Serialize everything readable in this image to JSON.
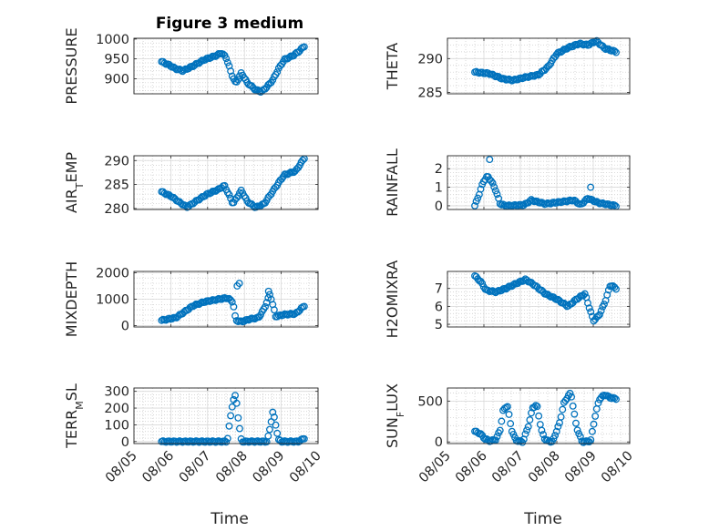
{
  "figure": {
    "title": "Figure 3 medium",
    "xlabel": "Time",
    "marker_color": "#0072BD",
    "x_ticks": [
      "08/05",
      "08/06",
      "08/07",
      "08/08",
      "08/09",
      "08/10"
    ]
  },
  "chart_data": [
    {
      "type": "scatter",
      "name": "pressure",
      "ylabel": "PRESSURE",
      "ylim": [
        862,
        1002
      ],
      "yticks": [
        900,
        950,
        1000
      ],
      "grid": true,
      "minor_grid": true,
      "x_start": "2008-08-05T18:00",
      "x_end": "2008-08-09T15:00",
      "points": 96,
      "profile": [
        [
          0,
          943
        ],
        [
          0.05,
          935
        ],
        [
          0.1,
          925
        ],
        [
          0.15,
          920
        ],
        [
          0.22,
          932
        ],
        [
          0.3,
          948
        ],
        [
          0.38,
          958
        ],
        [
          0.42,
          965
        ],
        [
          0.45,
          955
        ],
        [
          0.47,
          935
        ],
        [
          0.49,
          912
        ],
        [
          0.52,
          888
        ],
        [
          0.56,
          915
        ],
        [
          0.6,
          890
        ],
        [
          0.66,
          872
        ],
        [
          0.7,
          867
        ],
        [
          0.74,
          880
        ],
        [
          0.78,
          897
        ],
        [
          0.82,
          925
        ],
        [
          0.86,
          948
        ],
        [
          0.92,
          958
        ],
        [
          0.96,
          968
        ],
        [
          1.0,
          982
        ]
      ]
    },
    {
      "type": "scatter",
      "name": "theta",
      "ylabel": "THETA",
      "ylim": [
        284.8,
        293
      ],
      "yticks": [
        285,
        290
      ],
      "grid": true,
      "minor_grid": true,
      "x_start": "2008-08-05T18:00",
      "x_end": "2008-08-09T15:00",
      "points": 96,
      "profile": [
        [
          0,
          288
        ],
        [
          0.1,
          287.8
        ],
        [
          0.2,
          287
        ],
        [
          0.27,
          286.8
        ],
        [
          0.35,
          287.2
        ],
        [
          0.45,
          287.6
        ],
        [
          0.52,
          288.8
        ],
        [
          0.58,
          290.7
        ],
        [
          0.66,
          291.6
        ],
        [
          0.74,
          292.2
        ],
        [
          0.8,
          292
        ],
        [
          0.86,
          292.6
        ],
        [
          0.92,
          291.5
        ],
        [
          1.0,
          291
        ]
      ]
    },
    {
      "type": "scatter",
      "name": "air_temp",
      "ylabel": "AIR_TEMP",
      "ylim": [
        279.8,
        291
      ],
      "yticks": [
        280,
        285,
        290
      ],
      "grid": true,
      "minor_grid": true,
      "x_start": "2008-08-05T18:00",
      "x_end": "2008-08-09T15:00",
      "points": 96,
      "profile": [
        [
          0,
          283.5
        ],
        [
          0.07,
          282.5
        ],
        [
          0.13,
          281.2
        ],
        [
          0.18,
          280.3
        ],
        [
          0.24,
          281.5
        ],
        [
          0.32,
          283
        ],
        [
          0.4,
          284
        ],
        [
          0.44,
          284.8
        ],
        [
          0.47,
          283
        ],
        [
          0.5,
          281
        ],
        [
          0.56,
          283.8
        ],
        [
          0.6,
          281.5
        ],
        [
          0.66,
          280.2
        ],
        [
          0.72,
          281
        ],
        [
          0.8,
          284.5
        ],
        [
          0.86,
          287
        ],
        [
          0.94,
          287.8
        ],
        [
          1.0,
          290.5
        ]
      ]
    },
    {
      "type": "scatter",
      "name": "rainfall",
      "ylabel": "RAINFALL",
      "ylim": [
        -0.2,
        2.7
      ],
      "yticks": [
        0,
        1,
        2
      ],
      "grid": true,
      "minor_grid": true,
      "x_start": "2008-08-05T18:00",
      "x_end": "2008-08-09T15:00",
      "points": 96,
      "profile": [
        [
          0,
          0
        ],
        [
          0.03,
          0.6
        ],
        [
          0.06,
          1.3
        ],
        [
          0.09,
          1.6
        ],
        [
          0.12,
          1.3
        ],
        [
          0.15,
          0.8
        ],
        [
          0.18,
          0.1
        ],
        [
          0.22,
          0
        ],
        [
          0.35,
          0.05
        ],
        [
          0.4,
          0.3
        ],
        [
          0.5,
          0.1
        ],
        [
          0.7,
          0.3
        ],
        [
          0.75,
          0.05
        ],
        [
          0.8,
          0.4
        ],
        [
          0.88,
          0.15
        ],
        [
          1.0,
          0
        ]
      ],
      "extra_points": [
        [
          0.105,
          2.5
        ],
        [
          0.82,
          1.0
        ]
      ]
    },
    {
      "type": "scatter",
      "name": "mixdepth",
      "ylabel": "MIXDEPTH",
      "ylim": [
        -50,
        2050
      ],
      "yticks": [
        0,
        1000,
        2000
      ],
      "grid": true,
      "minor_grid": true,
      "x_start": "2008-08-05T18:00",
      "x_end": "2008-08-09T15:00",
      "points": 96,
      "profile": [
        [
          0,
          200
        ],
        [
          0.1,
          300
        ],
        [
          0.16,
          520
        ],
        [
          0.22,
          750
        ],
        [
          0.3,
          900
        ],
        [
          0.38,
          980
        ],
        [
          0.46,
          1050
        ],
        [
          0.5,
          900
        ],
        [
          0.52,
          200
        ],
        [
          0.56,
          150
        ],
        [
          0.62,
          250
        ],
        [
          0.68,
          300
        ],
        [
          0.72,
          650
        ],
        [
          0.76,
          1200
        ],
        [
          0.8,
          350
        ],
        [
          0.86,
          420
        ],
        [
          0.94,
          450
        ],
        [
          1.0,
          750
        ]
      ],
      "extra_points": [
        [
          0.53,
          1500
        ],
        [
          0.545,
          1600
        ],
        [
          0.75,
          1300
        ]
      ]
    },
    {
      "type": "scatter",
      "name": "h2omixra",
      "ylabel": "H2OMIXRA",
      "ylim": [
        4.85,
        7.95
      ],
      "yticks": [
        5,
        6,
        7
      ],
      "grid": true,
      "minor_grid": true,
      "x_start": "2008-08-05T18:00",
      "x_end": "2008-08-09T15:00",
      "points": 96,
      "profile": [
        [
          0,
          7.7
        ],
        [
          0.04,
          7.4
        ],
        [
          0.08,
          6.9
        ],
        [
          0.15,
          6.8
        ],
        [
          0.22,
          7
        ],
        [
          0.3,
          7.3
        ],
        [
          0.36,
          7.5
        ],
        [
          0.42,
          7.2
        ],
        [
          0.5,
          6.7
        ],
        [
          0.58,
          6.4
        ],
        [
          0.66,
          6
        ],
        [
          0.72,
          6.4
        ],
        [
          0.78,
          6.7
        ],
        [
          0.84,
          5.2
        ],
        [
          0.88,
          5.5
        ],
        [
          0.92,
          6.2
        ],
        [
          0.96,
          7.2
        ],
        [
          1.0,
          7
        ]
      ]
    },
    {
      "type": "scatter",
      "name": "terr_msl",
      "ylabel": "TERR_MSL",
      "ylim": [
        -12,
        320
      ],
      "yticks": [
        0,
        100,
        200,
        300
      ],
      "grid": true,
      "minor_grid": true,
      "x_start": "2008-08-05T18:00",
      "x_end": "2008-08-09T15:00",
      "points": 96,
      "profile": [
        [
          0,
          0
        ],
        [
          0.46,
          0
        ],
        [
          0.48,
          130
        ],
        [
          0.5,
          240
        ],
        [
          0.52,
          280
        ],
        [
          0.54,
          120
        ],
        [
          0.56,
          0
        ],
        [
          0.74,
          0
        ],
        [
          0.76,
          80
        ],
        [
          0.78,
          180
        ],
        [
          0.8,
          100
        ],
        [
          0.82,
          10
        ],
        [
          0.84,
          0
        ],
        [
          0.96,
          0
        ],
        [
          1.0,
          20
        ]
      ]
    },
    {
      "type": "scatter",
      "name": "sun_flux",
      "ylabel": "SUN_FLUX",
      "ylim": [
        -20,
        660
      ],
      "yticks": [
        0,
        500
      ],
      "grid": true,
      "minor_grid": true,
      "x_start": "2008-08-05T18:00",
      "x_end": "2008-08-09T15:00",
      "points": 96,
      "profile": [
        [
          0,
          130
        ],
        [
          0.04,
          100
        ],
        [
          0.07,
          40
        ],
        [
          0.11,
          10
        ],
        [
          0.15,
          30
        ],
        [
          0.18,
          150
        ],
        [
          0.2,
          380
        ],
        [
          0.23,
          450
        ],
        [
          0.26,
          150
        ],
        [
          0.29,
          20
        ],
        [
          0.34,
          0
        ],
        [
          0.38,
          200
        ],
        [
          0.41,
          420
        ],
        [
          0.44,
          450
        ],
        [
          0.47,
          150
        ],
        [
          0.5,
          20
        ],
        [
          0.55,
          0
        ],
        [
          0.6,
          230
        ],
        [
          0.63,
          470
        ],
        [
          0.66,
          560
        ],
        [
          0.68,
          600
        ],
        [
          0.72,
          180
        ],
        [
          0.76,
          0
        ],
        [
          0.82,
          10
        ],
        [
          0.85,
          300
        ],
        [
          0.88,
          520
        ],
        [
          0.92,
          580
        ],
        [
          0.96,
          540
        ],
        [
          1.0,
          530
        ]
      ]
    }
  ]
}
